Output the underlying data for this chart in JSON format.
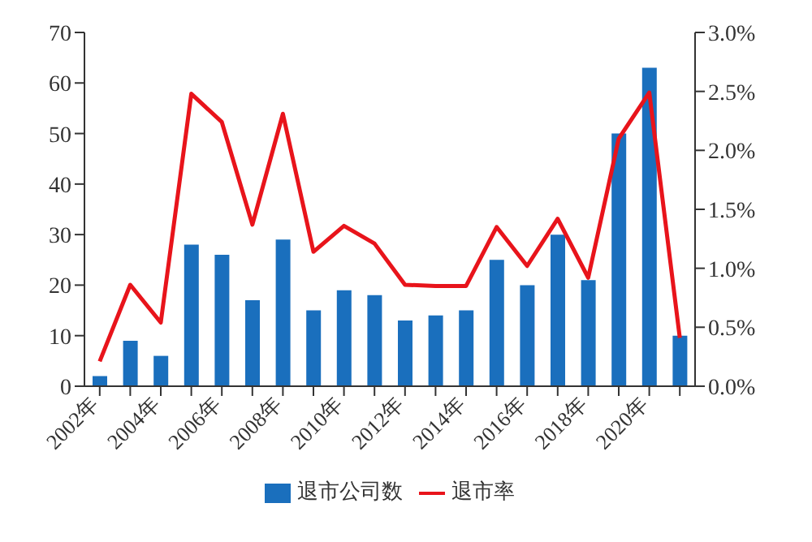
{
  "chart_data": {
    "type": "bar",
    "categories": [
      "2002年",
      null,
      "2004年",
      null,
      "2006年",
      null,
      "2008年",
      null,
      "2010年",
      null,
      "2012年",
      null,
      "2014年",
      null,
      "2016年",
      null,
      "2018年",
      null,
      "2020年",
      null
    ],
    "series": [
      {
        "name": "退市公司数",
        "color": "#1a6fbd",
        "values": [
          2,
          9,
          6,
          28,
          26,
          17,
          29,
          15,
          19,
          18,
          13,
          14,
          15,
          25,
          20,
          30,
          21,
          50,
          63,
          10
        ]
      },
      {
        "name": "退市率",
        "type": "line",
        "axis": "y2",
        "color": "#e8141b",
        "marker": "none",
        "values": [
          0.21,
          0.86,
          0.54,
          2.48,
          2.24,
          1.37,
          2.31,
          1.14,
          1.36,
          1.21,
          0.86,
          0.85,
          0.85,
          1.35,
          1.02,
          1.42,
          0.92,
          2.1,
          2.49,
          0.41
        ]
      }
    ],
    "ylim": [
      0,
      70
    ],
    "yticks": [
      0,
      10,
      20,
      30,
      40,
      50,
      60,
      70
    ],
    "y2lim": [
      0,
      3
    ],
    "y2ticks": [
      {
        "value": 0,
        "label": "0.0%"
      },
      {
        "value": 0.5,
        "label": "0.5%"
      },
      {
        "value": 1,
        "label": "1.0%"
      },
      {
        "value": 1.5,
        "label": "1.5%"
      },
      {
        "value": 2,
        "label": "2.0%"
      },
      {
        "value": 2.5,
        "label": "2.5%"
      },
      {
        "value": 3,
        "label": "3.0%"
      }
    ],
    "grid": false,
    "legend": "bottom"
  }
}
